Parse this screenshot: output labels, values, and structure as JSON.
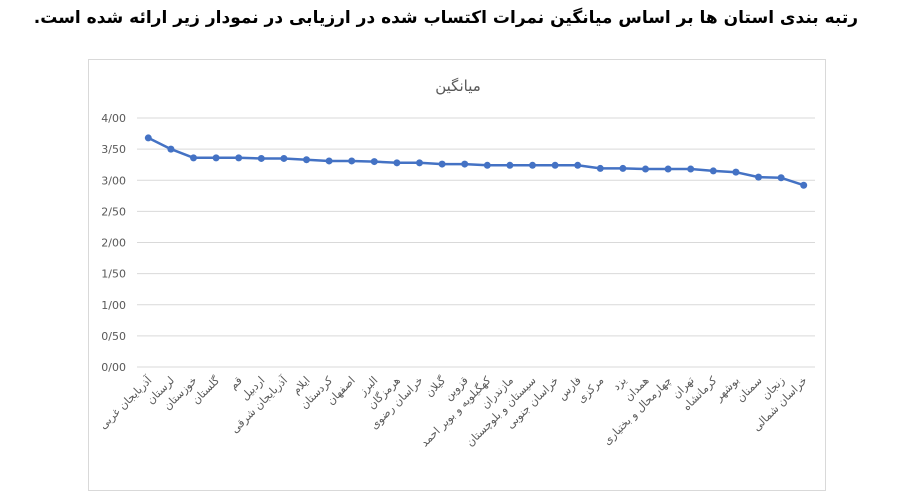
{
  "caption": "رتبه بندی استان ها بر اساس میانگین نمرات اکتساب شده در ارزیابی در نمودار زیر ارائه شده است.",
  "chart_data": {
    "type": "line",
    "title": "میانگین",
    "series_color": "#4472c4",
    "ylim": [
      0,
      4
    ],
    "y_ticks": [
      0,
      0.5,
      1,
      1.5,
      2,
      2.5,
      3,
      3.5,
      4
    ],
    "y_tick_labels": [
      "0/00",
      "0/50",
      "1/00",
      "1/50",
      "2/00",
      "2/50",
      "3/00",
      "3/50",
      "4/00"
    ],
    "grid": true,
    "categories": [
      "آذربایجان غربی",
      "لرستان",
      "خوزستان",
      "گلستان",
      "قم",
      "اردبیل",
      "آذربایجان شرقی",
      "ایلام",
      "کردستان",
      "اصفهان",
      "البرز",
      "هرمزگان",
      "خراسان رضوی",
      "گیلان",
      "قزوین",
      "کهگیلویه و بویر احمد",
      "مازندران",
      "سیستان و بلوچستان",
      "خراسان جنوبی",
      "فارس",
      "مرکزی",
      "یزد",
      "همدان",
      "چهارمحال و بختیاری",
      "تهران",
      "کرمانشاه",
      "بوشهر",
      "سمنان",
      "زنجان",
      "خراسان شمالی"
    ],
    "values": [
      3.68,
      3.5,
      3.36,
      3.36,
      3.36,
      3.35,
      3.35,
      3.33,
      3.31,
      3.31,
      3.3,
      3.28,
      3.28,
      3.26,
      3.26,
      3.24,
      3.24,
      3.24,
      3.24,
      3.24,
      3.19,
      3.19,
      3.18,
      3.18,
      3.18,
      3.15,
      3.13,
      3.05,
      3.04,
      2.92
    ]
  }
}
